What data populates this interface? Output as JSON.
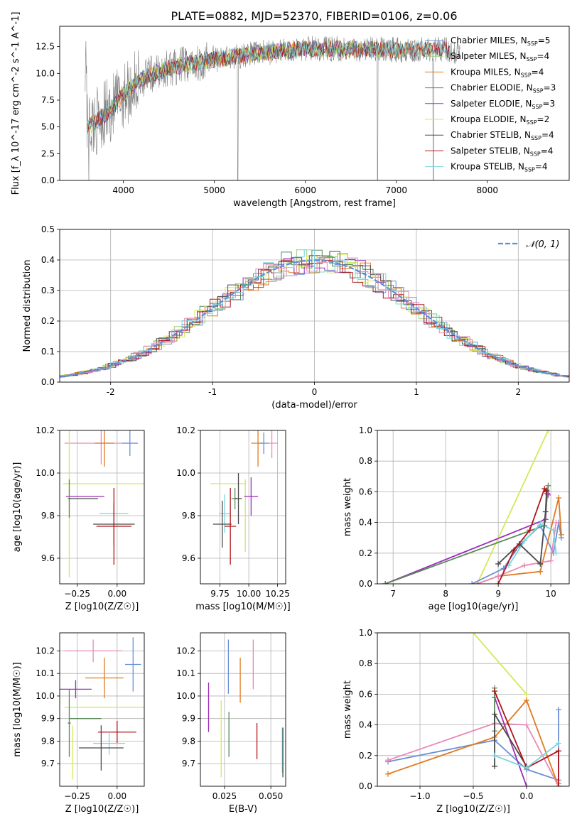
{
  "figure": {
    "title": "PLATE=0882, MJD=52370, FIBERID=0106, z=0.06"
  },
  "colors": {
    "Chabrier MILES": "#6b8fd6",
    "Salpeter MILES": "#9acf7a",
    "Kroupa MILES": "#e07a1f",
    "Chabrier ELODIE": "#5a8a5a",
    "Salpeter ELODIE": "#9a2fb8",
    "Kroupa ELODIE": "#d6e85a",
    "Chabrier STELIB": "#4a4a4a",
    "Salpeter STELIB": "#b0151a",
    "Kroupa STELIB": "#7ad6dc",
    "data": "#808080",
    "pink": "#e68ab8",
    "gaussian": "#5b8fd6"
  },
  "chart_data": [
    {
      "id": "spectrum",
      "type": "line",
      "xlabel": "wavelength [Angstrom, rest frame]",
      "ylabel": "Flux [f_λ 10^-17 erg cm^-2 s^-1 A^-1]",
      "xlim": [
        3300,
        8900
      ],
      "ylim": [
        0,
        14.4
      ],
      "xticks": [
        4000,
        5000,
        6000,
        7000,
        8000
      ],
      "yticks": [
        0.0,
        2.5,
        5.0,
        7.5,
        10.0,
        12.5
      ],
      "legend_position": "right",
      "legend": [
        {
          "label": "Chabrier MILES, N_SSP=5",
          "key": "Chabrier MILES"
        },
        {
          "label": "Salpeter MILES, N_SSP=4",
          "key": "Salpeter MILES"
        },
        {
          "label": "Kroupa MILES, N_SSP=4",
          "key": "Kroupa MILES"
        },
        {
          "label": "Chabrier ELODIE, N_SSP=3",
          "key": "Chabrier ELODIE"
        },
        {
          "label": "Salpeter ELODIE, N_SSP=3",
          "key": "Salpeter ELODIE"
        },
        {
          "label": "Kroupa ELODIE, N_SSP=2",
          "key": "Kroupa ELODIE"
        },
        {
          "label": "Chabrier STELIB, N_SSP=4",
          "key": "Chabrier STELIB"
        },
        {
          "label": "Salpeter STELIB, N_SSP=4",
          "key": "Salpeter STELIB"
        },
        {
          "label": "Kroupa STELIB, N_SSP=4",
          "key": "Kroupa STELIB"
        }
      ],
      "continuum_model": {
        "x": [
          3600,
          3700,
          3850,
          4000,
          4200,
          4500,
          5000,
          5500,
          6000,
          6500,
          7000,
          7500,
          7600,
          8000,
          8500,
          8900
        ],
        "y": [
          5.0,
          5.5,
          6.5,
          8.0,
          9.5,
          10.5,
          11.3,
          11.9,
          12.3,
          12.3,
          12.2,
          12.3,
          12.1,
          11.9,
          11.7,
          11.5
        ]
      }
    },
    {
      "id": "residuals",
      "type": "histogram",
      "xlabel": "(data-model)/error",
      "ylabel": "Normed distribution",
      "xlim": [
        -2.5,
        2.5
      ],
      "ylim": [
        0,
        0.5
      ],
      "xticks": [
        -2,
        -1,
        0,
        1,
        2
      ],
      "yticks": [
        0.0,
        0.1,
        0.2,
        0.3,
        0.4,
        0.5
      ],
      "grid": true,
      "legend_position": "top-right",
      "legend": [
        {
          "label": "𝒩(0, 1)",
          "key": "gaussian"
        }
      ],
      "bin_width": 0.1
    },
    {
      "id": "age-vs-Z",
      "type": "scatter",
      "xlabel": "Z [log10(Z/Z☉)]",
      "ylabel": "age [log10(age/yr)]",
      "xlim": [
        -0.36,
        0.17
      ],
      "ylim": [
        9.48,
        10.2
      ],
      "xticks": [
        -0.25,
        0.0
      ],
      "xticklabels": [
        "−0.25",
        "0.00"
      ],
      "yticks": [
        9.6,
        9.8,
        10.0,
        10.2
      ],
      "yticklabels": [
        "9.6",
        "9.8",
        "10.0",
        "10.2"
      ],
      "points": [
        {
          "c": "pink",
          "x": -0.1,
          "y": 10.14,
          "xe": 0.23,
          "ye": 0.1
        },
        {
          "c": "Kroupa MILES",
          "x": -0.08,
          "y": 10.14,
          "xe": 0.06,
          "ye": 0.11
        },
        {
          "c": "Chabrier MILES",
          "x": 0.08,
          "y": 10.14,
          "xe": 0.05,
          "ye": 0.06
        },
        {
          "c": "Kroupa ELODIE",
          "x": -0.3,
          "y": 9.95,
          "xe": 0.04,
          "ye": 0.44
        },
        {
          "c": "Kroupa ELODIE",
          "x": -0.05,
          "y": 9.95,
          "xe": 0.28,
          "ye": 0.0
        },
        {
          "c": "Salpeter ELODIE",
          "x": -0.2,
          "y": 9.89,
          "xe": 0.12,
          "ye": 0.0
        },
        {
          "c": "Chabrier ELODIE",
          "x": -0.3,
          "y": 9.88,
          "xe": 0.01,
          "ye": 0.09
        },
        {
          "c": "Chabrier STELIB",
          "x": -0.21,
          "y": 9.88,
          "xe": 0.09,
          "ye": 0.0
        },
        {
          "c": "Kroupa STELIB",
          "x": -0.02,
          "y": 9.81,
          "xe": 0.09,
          "ye": 0.06
        },
        {
          "c": "Chabrier STELIB",
          "x": -0.02,
          "y": 9.76,
          "xe": 0.13,
          "ye": 0.1
        },
        {
          "c": "Salpeter STELIB",
          "x": -0.02,
          "y": 9.75,
          "xe": 0.11,
          "ye": 0.18
        }
      ]
    },
    {
      "id": "age-vs-mass",
      "type": "scatter",
      "xlabel": "mass [log10(M/M☉)]",
      "ylabel": "",
      "xlim": [
        9.58,
        10.32
      ],
      "ylim": [
        9.48,
        10.2
      ],
      "xticks": [
        9.75,
        10.0,
        10.25
      ],
      "xticklabels": [
        "9.75",
        "10.00",
        "10.25"
      ],
      "yticks": [
        9.6,
        9.8,
        10.0,
        10.2
      ],
      "yticklabels": [
        "9.6",
        "9.8",
        "10.0",
        "10.2"
      ],
      "points": [
        {
          "c": "pink",
          "x": 10.2,
          "y": 10.14,
          "xe": 0.05,
          "ye": 0.07
        },
        {
          "c": "Kroupa MILES",
          "x": 10.08,
          "y": 10.14,
          "xe": 0.06,
          "ye": 0.11
        },
        {
          "c": "Chabrier MILES",
          "x": 10.13,
          "y": 10.14,
          "xe": 0.04,
          "ye": 0.05
        },
        {
          "c": "Kroupa ELODIE",
          "x": 9.82,
          "y": 9.95,
          "xe": 0.15,
          "ye": 0.0
        },
        {
          "c": "Kroupa ELODIE",
          "x": 9.97,
          "y": 9.8,
          "xe": 0.0,
          "ye": 0.17
        },
        {
          "c": "Salpeter ELODIE",
          "x": 10.02,
          "y": 9.89,
          "xe": 0.06,
          "ye": 0.09
        },
        {
          "c": "Chabrier ELODIE",
          "x": 9.88,
          "y": 9.88,
          "xe": 0.03,
          "ye": 0.05
        },
        {
          "c": "Chabrier STELIB",
          "x": 9.91,
          "y": 9.88,
          "xe": 0.03,
          "ye": 0.12
        },
        {
          "c": "Kroupa STELIB",
          "x": 9.79,
          "y": 9.81,
          "xe": 0.05,
          "ye": 0.09
        },
        {
          "c": "Chabrier STELIB",
          "x": 9.77,
          "y": 9.76,
          "xe": 0.08,
          "ye": 0.11
        },
        {
          "c": "Salpeter STELIB",
          "x": 9.84,
          "y": 9.75,
          "xe": 0.05,
          "ye": 0.18
        }
      ]
    },
    {
      "id": "weight-vs-age",
      "type": "line",
      "xlabel": "age [log10(age/yr)]",
      "ylabel": "mass weight",
      "xlim": [
        6.7,
        10.35
      ],
      "ylim": [
        0,
        1.0
      ],
      "xticks": [
        7,
        8,
        9,
        10
      ],
      "yticks": [
        0.0,
        0.2,
        0.4,
        0.6,
        0.8,
        1.0
      ],
      "grid": true,
      "series": [
        {
          "c": "Kroupa ELODIE",
          "x": [
            8.6,
            9.95
          ],
          "y": [
            0.0,
            1.0
          ]
        },
        {
          "c": "Salpeter ELODIE",
          "x": [
            6.85,
            9.9,
            9.93,
            9.95
          ],
          "y": [
            0.0,
            0.42,
            0.59,
            0.58
          ]
        },
        {
          "c": "Chabrier ELODIE",
          "x": [
            6.85,
            9.88,
            9.95
          ],
          "y": [
            0.0,
            0.38,
            0.64
          ]
        },
        {
          "c": "Chabrier MILES",
          "x": [
            8.5,
            9.1,
            9.4,
            9.8,
            10.05,
            10.15,
            10.2
          ],
          "y": [
            0.0,
            0.1,
            0.25,
            0.38,
            0.2,
            0.4,
            0.3
          ]
        },
        {
          "c": "Kroupa MILES",
          "x": [
            8.6,
            9.0,
            9.8,
            10.15,
            10.2
          ],
          "y": [
            0.0,
            0.05,
            0.08,
            0.56,
            0.32
          ]
        },
        {
          "c": "pink",
          "x": [
            8.6,
            9.0,
            9.5,
            10.0,
            10.1
          ],
          "y": [
            0.0,
            0.05,
            0.12,
            0.15,
            0.4
          ]
        },
        {
          "c": "Kroupa STELIB",
          "x": [
            9.2,
            9.5,
            9.8,
            10.05,
            10.1
          ],
          "y": [
            0.12,
            0.28,
            0.39,
            0.35,
            0.2
          ]
        },
        {
          "c": "Chabrier STELIB",
          "x": [
            9.0,
            9.4,
            9.8,
            9.9,
            9.92
          ],
          "y": [
            0.13,
            0.26,
            0.13,
            0.47,
            0.61
          ]
        },
        {
          "c": "Salpeter STELIB",
          "x": [
            9.0,
            9.3,
            9.6,
            9.88,
            9.92
          ],
          "y": [
            0.0,
            0.22,
            0.35,
            0.62,
            0.6
          ]
        }
      ]
    },
    {
      "id": "mass-vs-Z",
      "type": "scatter",
      "xlabel": "Z [log10(Z/Z☉)]",
      "ylabel": "mass [log10(M/M☉)]",
      "xlim": [
        -0.36,
        0.17
      ],
      "ylim": [
        9.6,
        10.28
      ],
      "xticks": [
        -0.25,
        0.0
      ],
      "xticklabels": [
        "−0.25",
        "0.00"
      ],
      "yticks": [
        9.7,
        9.8,
        9.9,
        10.0,
        10.1,
        10.2
      ],
      "yticklabels": [
        "9.7",
        "9.8",
        "9.9",
        "10.0",
        "10.1",
        "10.2"
      ],
      "points": [
        {
          "c": "pink",
          "x": -0.15,
          "y": 10.2,
          "xe": 0.18,
          "ye": 0.05
        },
        {
          "c": "Chabrier MILES",
          "x": 0.1,
          "y": 10.14,
          "xe": 0.05,
          "ye": 0.12
        },
        {
          "c": "Kroupa MILES",
          "x": -0.08,
          "y": 10.08,
          "xe": 0.12,
          "ye": 0.09
        },
        {
          "c": "Salpeter ELODIE",
          "x": -0.26,
          "y": 10.03,
          "xe": 0.1,
          "ye": 0.04
        },
        {
          "c": "Kroupa ELODIE",
          "x": -0.05,
          "y": 9.95,
          "xe": 0.28,
          "ye": 0.0
        },
        {
          "c": "Kroupa ELODIE",
          "x": -0.28,
          "y": 9.75,
          "xe": 0.0,
          "ye": 0.12
        },
        {
          "c": "Chabrier ELODIE",
          "x": -0.3,
          "y": 9.88,
          "xe": 0.01,
          "ye": 0.15
        },
        {
          "c": "Chabrier ELODIE",
          "x": -0.2,
          "y": 9.9,
          "xe": 0.1,
          "ye": 0.0
        },
        {
          "c": "Salpeter STELIB",
          "x": 0.0,
          "y": 9.84,
          "xe": 0.12,
          "ye": 0.05
        },
        {
          "c": "Kroupa STELIB",
          "x": -0.05,
          "y": 9.79,
          "xe": 0.1,
          "ye": 0.05
        },
        {
          "c": "Chabrier STELIB",
          "x": -0.1,
          "y": 9.77,
          "xe": 0.14,
          "ye": 0.1
        }
      ]
    },
    {
      "id": "mass-vs-EBV",
      "type": "scatter",
      "xlabel": "E(B-V)",
      "ylabel": "",
      "xlim": [
        0.012,
        0.058
      ],
      "ylim": [
        9.6,
        10.28
      ],
      "xticks": [
        0.025,
        0.05
      ],
      "xticklabels": [
        "0.025",
        "0.050"
      ],
      "yticks": [
        9.7,
        9.8,
        9.9,
        10.0,
        10.1,
        10.2
      ],
      "yticklabels": [
        "9.7",
        "9.8",
        "9.9",
        "10.0",
        "10.1",
        "10.2"
      ],
      "points": [
        {
          "c": "Salpeter ELODIE",
          "x": 0.0164,
          "y": 9.95,
          "xe": 0,
          "ye": 0.11
        },
        {
          "c": "Kroupa ELODIE",
          "x": 0.0232,
          "y": 9.81,
          "xe": 0,
          "ye": 0.17
        },
        {
          "c": "Chabrier MILES",
          "x": 0.0271,
          "y": 10.13,
          "xe": 0,
          "ye": 0.12
        },
        {
          "c": "Chabrier ELODIE",
          "x": 0.0274,
          "y": 9.83,
          "xe": 0,
          "ye": 0.1
        },
        {
          "c": "Kroupa MILES",
          "x": 0.0335,
          "y": 10.07,
          "xe": 0,
          "ye": 0.1
        },
        {
          "c": "pink",
          "x": 0.0405,
          "y": 10.14,
          "xe": 0,
          "ye": 0.11
        },
        {
          "c": "Salpeter STELIB",
          "x": 0.0425,
          "y": 9.8,
          "xe": 0,
          "ye": 0.08
        },
        {
          "c": "Kroupa STELIB",
          "x": 0.0562,
          "y": 9.76,
          "xe": 0,
          "ye": 0.1
        },
        {
          "c": "Chabrier STELIB",
          "x": 0.0565,
          "y": 9.75,
          "xe": 0,
          "ye": 0.11
        }
      ]
    },
    {
      "id": "weight-vs-Z",
      "type": "line",
      "xlabel": "Z [log10(Z/Z☉)]",
      "ylabel": "mass weight",
      "xlim": [
        -1.4,
        0.4
      ],
      "ylim": [
        0,
        1.0
      ],
      "xticks": [
        -1.0,
        -0.5,
        0.0
      ],
      "xticklabels": [
        "−1.0",
        "−0.5",
        "0.0"
      ],
      "yticks": [
        0.0,
        0.2,
        0.4,
        0.6,
        0.8,
        1.0
      ],
      "grid": true,
      "series": [
        {
          "c": "Kroupa ELODIE",
          "x": [
            -0.5,
            0.0
          ],
          "y": [
            1.0,
            0.6
          ]
        },
        {
          "c": "Chabrier MILES",
          "x": [
            -1.3,
            -0.3,
            0.0,
            0.3,
            0.3
          ],
          "y": [
            0.16,
            0.3,
            0.11,
            0.04,
            0.5
          ]
        },
        {
          "c": "Kroupa MILES",
          "x": [
            -1.3,
            -0.3,
            0.0,
            0.3,
            0.3
          ],
          "y": [
            0.08,
            0.32,
            0.56,
            0.0,
            0.02
          ]
        },
        {
          "c": "pink",
          "x": [
            -1.3,
            -0.3,
            0.0,
            0.3
          ],
          "y": [
            0.17,
            0.41,
            0.4,
            0.0
          ]
        },
        {
          "c": "Salpeter ELODIE",
          "x": [
            -0.3,
            0.0
          ],
          "y": [
            0.58,
            0.0
          ]
        },
        {
          "c": "Chabrier ELODIE",
          "x": [
            -0.3,
            -0.3
          ],
          "y": [
            0.64,
            0.36
          ]
        },
        {
          "c": "Chabrier STELIB",
          "x": [
            -0.3,
            -0.3,
            0.0,
            0.0
          ],
          "y": [
            0.13,
            0.47,
            0.13,
            0.12
          ]
        },
        {
          "c": "Salpeter STELIB",
          "x": [
            -0.3,
            0.0,
            0.3,
            0.3
          ],
          "y": [
            0.62,
            0.12,
            0.23,
            0.0
          ]
        },
        {
          "c": "Kroupa STELIB",
          "x": [
            -0.3,
            0.0,
            0.3
          ],
          "y": [
            0.2,
            0.12,
            0.28
          ]
        }
      ]
    }
  ]
}
